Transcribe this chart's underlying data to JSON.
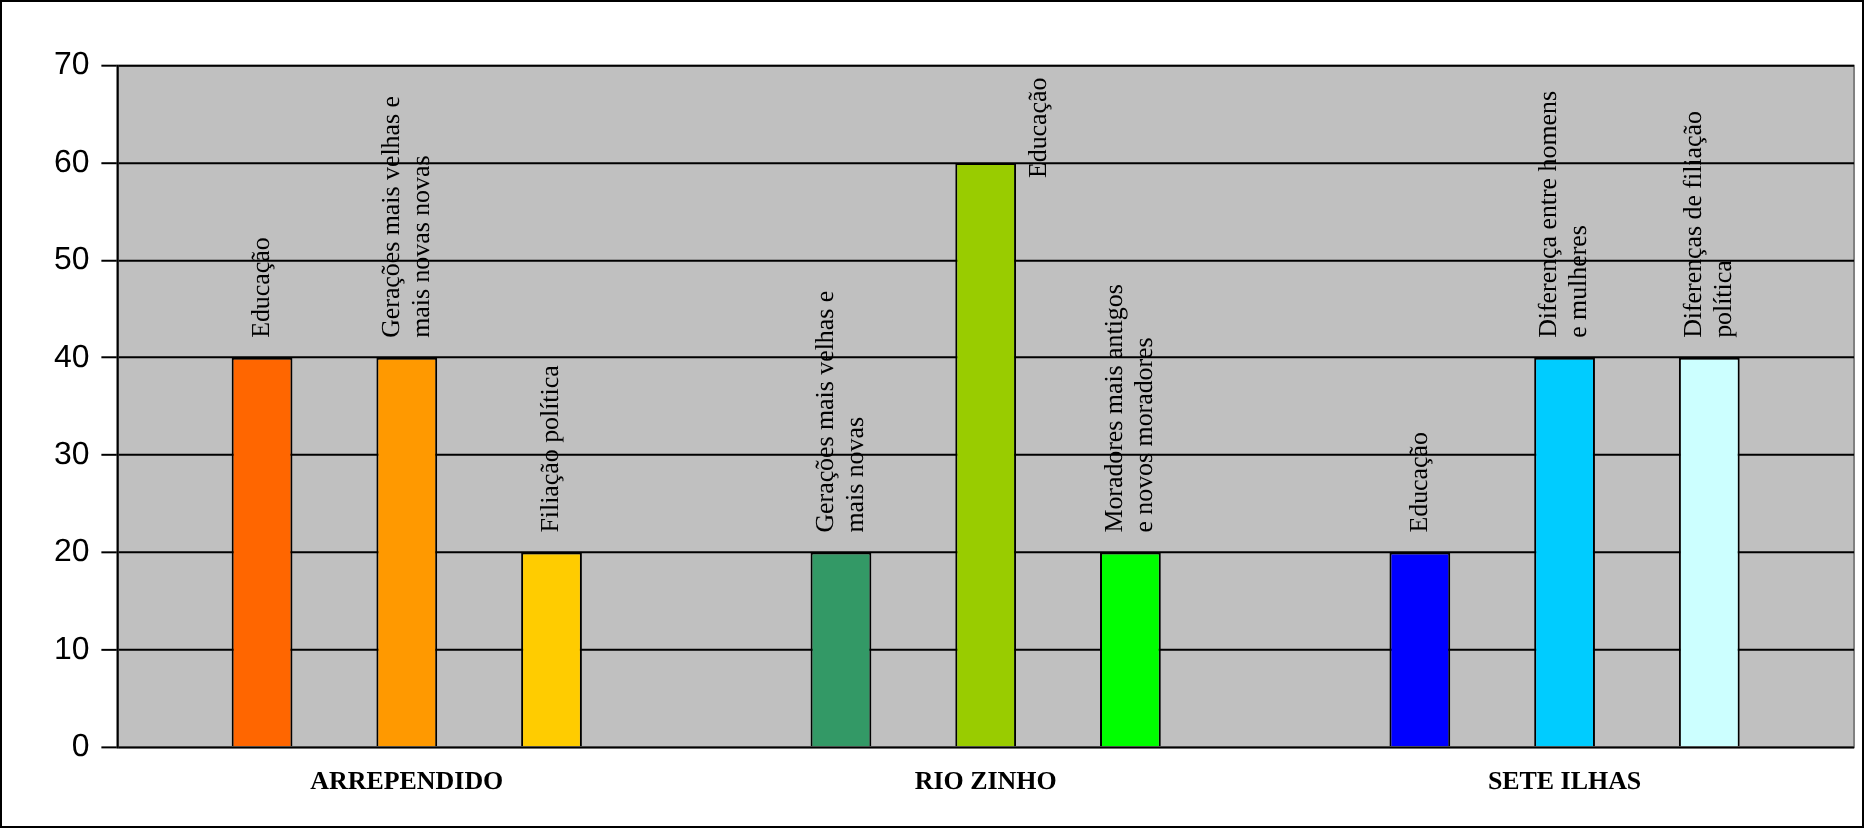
{
  "chart_data": {
    "type": "bar",
    "categories": [
      "ARREPENDIDO",
      "RIO ZINHO",
      "SETE ILHAS"
    ],
    "series": [
      {
        "name": "Educação",
        "color": "#ff6600",
        "values": [
          40,
          null,
          null
        ]
      },
      {
        "name": "Gerações mais velhas e mais novas novas",
        "color": "#ff9900",
        "values": [
          40,
          null,
          null
        ]
      },
      {
        "name": "Filiação política",
        "color": "#ffcc00",
        "values": [
          20,
          null,
          null
        ]
      },
      {
        "name": "Gerações mais velhas e mais novas",
        "color": "#339966",
        "values": [
          null,
          20,
          null
        ]
      },
      {
        "name": "Educação",
        "color": "#99cc00",
        "values": [
          null,
          60,
          null
        ]
      },
      {
        "name": "Moradores mais antigos e novos moradores",
        "color": "#00ff00",
        "values": [
          null,
          20,
          null
        ]
      },
      {
        "name": "Educação",
        "color": "#0000ff",
        "values": [
          null,
          null,
          20
        ]
      },
      {
        "name": "Diferença entre homens e mulheres",
        "color": "#00ccff",
        "values": [
          null,
          null,
          40
        ]
      },
      {
        "name": "Diferenças de filiação política",
        "color": "#ccffff",
        "values": [
          null,
          null,
          40
        ]
      }
    ],
    "ylim": [
      0,
      70
    ],
    "yticks": [
      0,
      10,
      20,
      30,
      40,
      50,
      60,
      70
    ],
    "grid": "y",
    "legend": false
  }
}
